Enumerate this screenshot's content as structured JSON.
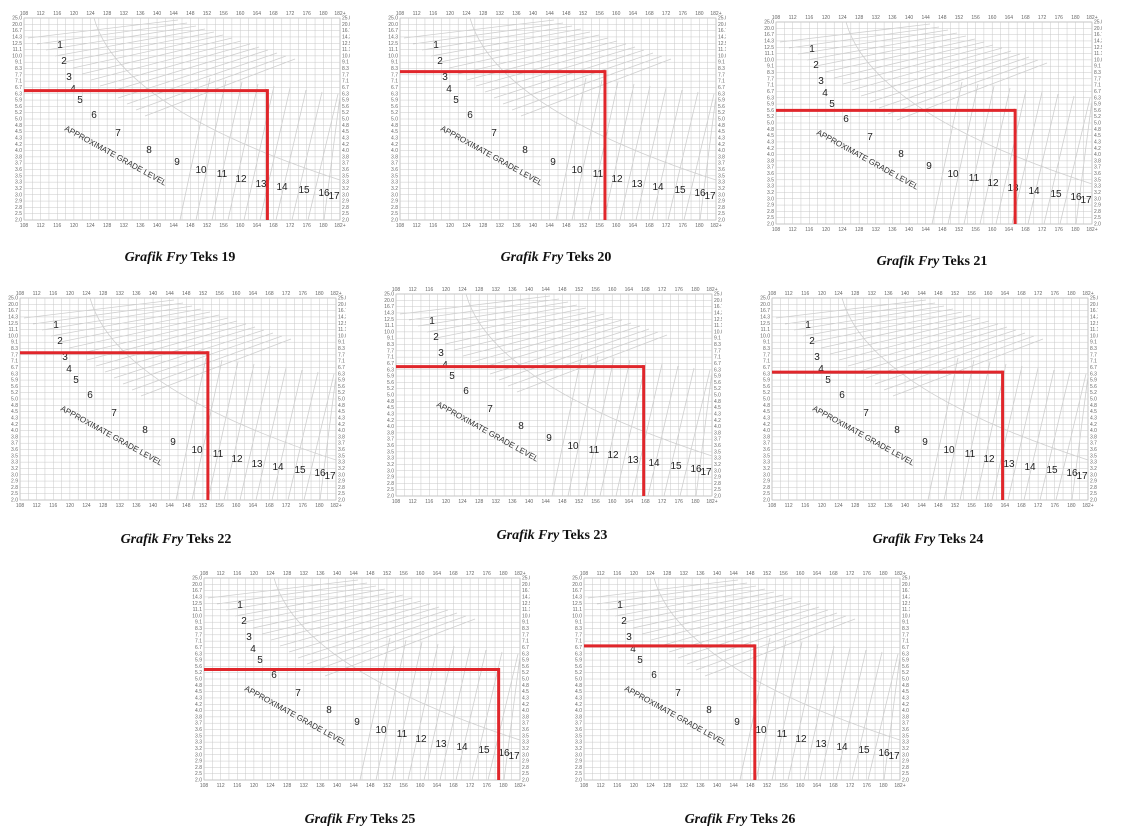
{
  "colors": {
    "marker": "#e0262b",
    "grid": "#c9c9c9",
    "curve": "#cfcfcf",
    "text": "#222222"
  },
  "axis": {
    "x_ticks": [
      "108",
      "112",
      "116",
      "120",
      "124",
      "128",
      "132",
      "136",
      "140",
      "144",
      "148",
      "152",
      "156",
      "160",
      "164",
      "168",
      "172",
      "176",
      "180",
      "182+"
    ],
    "y_ticks": [
      "25.0",
      "20.0",
      "16.7",
      "14.3",
      "12.5",
      "11.1",
      "10.0",
      "9.1",
      "8.3",
      "7.7",
      "7.1",
      "6.7",
      "6.3",
      "5.9",
      "5.6",
      "5.2",
      "5.0",
      "4.8",
      "4.5",
      "4.3",
      "4.2",
      "4.0",
      "3.8",
      "3.7",
      "3.6",
      "3.5",
      "3.3",
      "3.2",
      "3.0",
      "2.9",
      "2.8",
      "2.5",
      "2.0"
    ]
  },
  "grade_labels": [
    "1",
    "2",
    "3",
    "4",
    "5",
    "6",
    "7",
    "8",
    "9",
    "10",
    "11",
    "12",
    "13",
    "14",
    "15",
    "16",
    "17"
  ],
  "diagonal_label": "APPROXIMATE GRADE LEVEL",
  "chart_data": [
    {
      "type": "scatter",
      "caption_italic": "Grafik Fry",
      "caption_rest": " Teks 19",
      "x_ticks_ref": "axis.x_ticks",
      "y_ticks_ref": "axis.y_ticks",
      "point": {
        "syllables": 165,
        "sentences": 6.5
      }
    },
    {
      "type": "scatter",
      "caption_italic": "Grafik Fry",
      "caption_rest": " Teks 20",
      "x_ticks_ref": "axis.x_ticks",
      "y_ticks_ref": "axis.y_ticks",
      "point": {
        "syllables": 156,
        "sentences": 8.0
      }
    },
    {
      "type": "scatter",
      "caption_italic": "Grafik Fry",
      "caption_rest": " Teks 21",
      "x_ticks_ref": "axis.x_ticks",
      "y_ticks_ref": "axis.y_ticks",
      "point": {
        "syllables": 164,
        "sentences": 5.6
      }
    },
    {
      "type": "scatter",
      "caption_italic": "Grafik Fry",
      "caption_rest": " Teks 22",
      "x_ticks_ref": "axis.x_ticks",
      "y_ticks_ref": "axis.y_ticks",
      "point": {
        "syllables": 152,
        "sentences": 7.9
      }
    },
    {
      "type": "scatter",
      "caption_italic": "Grafik Fry",
      "caption_rest": " Teks 23",
      "x_ticks_ref": "axis.x_ticks",
      "y_ticks_ref": "axis.y_ticks",
      "point": {
        "syllables": 166,
        "sentences": 6.5
      }
    },
    {
      "type": "scatter",
      "caption_italic": "Grafik Fry",
      "caption_rest": " Teks 24",
      "x_ticks_ref": "axis.x_ticks",
      "y_ticks_ref": "axis.y_ticks",
      "point": {
        "syllables": 162,
        "sentences": 6.4
      }
    },
    {
      "type": "scatter",
      "caption_italic": "Grafik Fry",
      "caption_rest": " Teks 25",
      "x_ticks_ref": "axis.x_ticks",
      "y_ticks_ref": "axis.y_ticks",
      "point": {
        "syllables": 177,
        "sentences": 5.4
      }
    },
    {
      "type": "scatter",
      "caption_italic": "Grafik Fry",
      "caption_rest": " Teks 26",
      "x_ticks_ref": "axis.x_ticks",
      "y_ticks_ref": "axis.y_ticks",
      "point": {
        "syllables": 148,
        "sentences": 6.8
      }
    }
  ]
}
